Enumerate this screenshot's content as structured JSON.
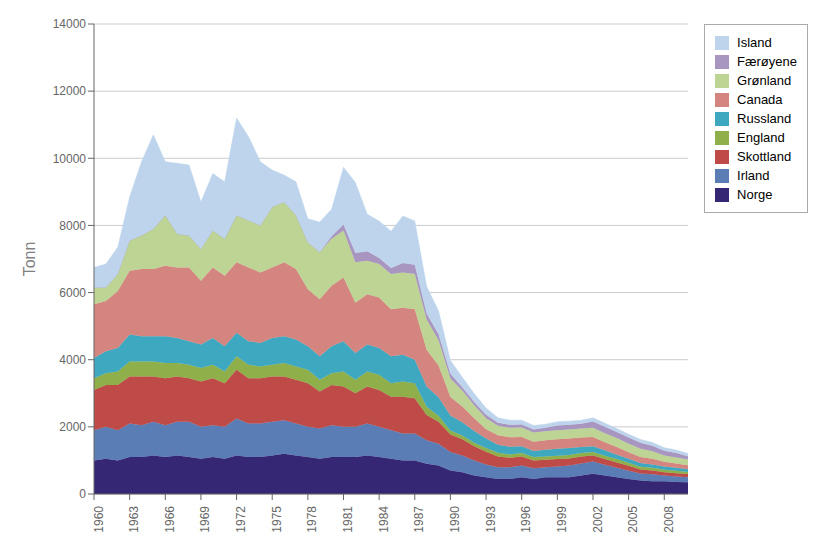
{
  "chart_data": {
    "type": "area",
    "stacked": true,
    "ylabel": "Tonn",
    "x": [
      1960,
      1961,
      1962,
      1963,
      1964,
      1965,
      1966,
      1967,
      1968,
      1969,
      1970,
      1971,
      1972,
      1973,
      1974,
      1975,
      1976,
      1977,
      1978,
      1979,
      1980,
      1981,
      1982,
      1983,
      1984,
      1985,
      1986,
      1987,
      1988,
      1989,
      1990,
      1991,
      1992,
      1993,
      1994,
      1995,
      1996,
      1997,
      1998,
      1999,
      2000,
      2001,
      2002,
      2003,
      2004,
      2005,
      2006,
      2007,
      2008,
      2009,
      2010
    ],
    "series": [
      {
        "name": "Norge",
        "color": "#362775",
        "values": [
          1000,
          1050,
          1000,
          1100,
          1100,
          1150,
          1100,
          1150,
          1100,
          1050,
          1100,
          1050,
          1150,
          1100,
          1100,
          1150,
          1200,
          1150,
          1100,
          1050,
          1100,
          1100,
          1100,
          1150,
          1100,
          1050,
          1000,
          1000,
          900,
          850,
          700,
          650,
          550,
          500,
          450,
          450,
          500,
          450,
          500,
          500,
          500,
          550,
          600,
          550,
          500,
          450,
          400,
          380,
          380,
          360,
          350
        ]
      },
      {
        "name": "Irland",
        "color": "#5b7db5",
        "values": [
          900,
          950,
          900,
          1000,
          950,
          1000,
          950,
          1000,
          1050,
          950,
          950,
          950,
          1100,
          1000,
          1000,
          1000,
          1000,
          950,
          900,
          900,
          950,
          900,
          900,
          950,
          900,
          850,
          800,
          800,
          700,
          650,
          550,
          500,
          450,
          380,
          350,
          350,
          350,
          320,
          300,
          320,
          350,
          360,
          370,
          320,
          280,
          240,
          210,
          210,
          170,
          160,
          150
        ]
      },
      {
        "name": "Skottland",
        "color": "#be4b48",
        "values": [
          1200,
          1250,
          1350,
          1400,
          1450,
          1350,
          1400,
          1350,
          1300,
          1350,
          1400,
          1300,
          1450,
          1350,
          1350,
          1350,
          1300,
          1300,
          1300,
          1100,
          1200,
          1200,
          1000,
          1100,
          1100,
          1000,
          1100,
          1050,
          750,
          650,
          520,
          480,
          420,
          380,
          320,
          280,
          270,
          230,
          220,
          220,
          210,
          210,
          180,
          170,
          160,
          150,
          120,
          110,
          100,
          100,
          95
        ]
      },
      {
        "name": "England",
        "color": "#8faf4a",
        "values": [
          350,
          350,
          400,
          450,
          450,
          450,
          450,
          400,
          400,
          400,
          400,
          350,
          400,
          400,
          350,
          350,
          400,
          400,
          400,
          350,
          350,
          450,
          400,
          450,
          450,
          400,
          450,
          450,
          250,
          180,
          120,
          110,
          110,
          110,
          110,
          100,
          100,
          100,
          100,
          100,
          100,
          100,
          100,
          100,
          100,
          90,
          80,
          80,
          70,
          70,
          60
        ]
      },
      {
        "name": "Russland",
        "color": "#3da8c0",
        "values": [
          600,
          650,
          700,
          800,
          750,
          750,
          800,
          750,
          700,
          700,
          800,
          750,
          700,
          700,
          700,
          800,
          800,
          800,
          700,
          700,
          800,
          900,
          800,
          800,
          800,
          800,
          800,
          700,
          600,
          550,
          450,
          400,
          350,
          280,
          240,
          230,
          200,
          180,
          200,
          210,
          210,
          180,
          170,
          160,
          130,
          120,
          110,
          100,
          100,
          90,
          80
        ]
      },
      {
        "name": "Canada",
        "color": "#d4857f",
        "values": [
          1600,
          1500,
          1700,
          1900,
          2000,
          2000,
          2100,
          2100,
          2200,
          1900,
          2100,
          2100,
          2100,
          2200,
          2100,
          2100,
          2200,
          2100,
          1700,
          1700,
          1800,
          1900,
          1500,
          1500,
          1500,
          1400,
          1400,
          1500,
          1100,
          950,
          550,
          470,
          380,
          280,
          280,
          280,
          280,
          280,
          280,
          280,
          280,
          280,
          280,
          240,
          230,
          190,
          180,
          170,
          140,
          130,
          120
        ]
      },
      {
        "name": "Grønland",
        "color": "#bdd494",
        "values": [
          500,
          400,
          500,
          900,
          1000,
          1200,
          1500,
          1000,
          950,
          950,
          1100,
          1100,
          1400,
          1400,
          1400,
          1800,
          1800,
          1600,
          1400,
          1400,
          1400,
          1400,
          1200,
          1000,
          1000,
          1050,
          1050,
          1050,
          900,
          750,
          550,
          470,
          380,
          330,
          280,
          280,
          280,
          270,
          270,
          270,
          270,
          270,
          270,
          270,
          270,
          260,
          250,
          220,
          190,
          180,
          170
        ]
      },
      {
        "name": "Færøyene",
        "color": "#a896c0",
        "values": [
          0,
          0,
          0,
          0,
          0,
          0,
          0,
          0,
          0,
          0,
          0,
          0,
          0,
          0,
          0,
          0,
          0,
          0,
          0,
          0,
          80,
          180,
          280,
          280,
          180,
          180,
          280,
          280,
          180,
          180,
          140,
          100,
          100,
          100,
          90,
          90,
          90,
          90,
          100,
          140,
          140,
          140,
          190,
          190,
          180,
          180,
          180,
          170,
          140,
          130,
          100
        ]
      },
      {
        "name": "Island",
        "color": "#bdd4ec",
        "values": [
          600,
          700,
          800,
          1300,
          2200,
          2800,
          1600,
          2100,
          2100,
          1400,
          1700,
          1700,
          2900,
          2500,
          1900,
          1100,
          800,
          1000,
          700,
          900,
          800,
          1700,
          2100,
          1100,
          1100,
          1100,
          1400,
          1300,
          800,
          700,
          400,
          300,
          250,
          200,
          150,
          140,
          130,
          120,
          110,
          110,
          110,
          110,
          110,
          110,
          100,
          100,
          95,
          95,
          90,
          90,
          80
        ]
      }
    ],
    "xlim": [
      1960,
      2010
    ],
    "xticks": [
      1960,
      1963,
      1966,
      1969,
      1972,
      1975,
      1978,
      1981,
      1984,
      1987,
      1990,
      1993,
      1996,
      1999,
      2002,
      2005,
      2008
    ],
    "ylim": [
      0,
      14000
    ],
    "yticks": [
      0,
      2000,
      4000,
      6000,
      8000,
      10000,
      12000,
      14000
    ],
    "grid": true,
    "legend": "right"
  }
}
